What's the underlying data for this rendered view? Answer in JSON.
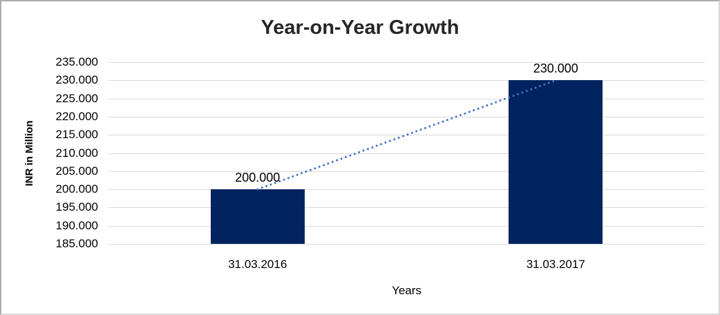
{
  "chart_data": {
    "type": "bar",
    "title": "Year-on-Year Growth",
    "xlabel": "Years",
    "ylabel": "INR in Million",
    "categories": [
      "31.03.2016",
      "31.03.2017"
    ],
    "values": [
      200000,
      230000
    ],
    "data_labels": [
      "200.000",
      "230.000"
    ],
    "y_ticks": [
      "235.000",
      "230.000",
      "225.000",
      "220.000",
      "215.000",
      "210.000",
      "205.000",
      "200.000",
      "195.000",
      "190.000",
      "185.000"
    ],
    "ylim": [
      185000,
      235000
    ],
    "grid": true,
    "legend_position": "none",
    "trendline": {
      "type": "linear",
      "style": "dotted",
      "connects": "bar tops"
    },
    "colors": {
      "bar": "#01235f",
      "trendline": "#4472c4",
      "gridline": "#d9d9d9",
      "title_text": "#262626",
      "axis_text": "#000000"
    }
  }
}
